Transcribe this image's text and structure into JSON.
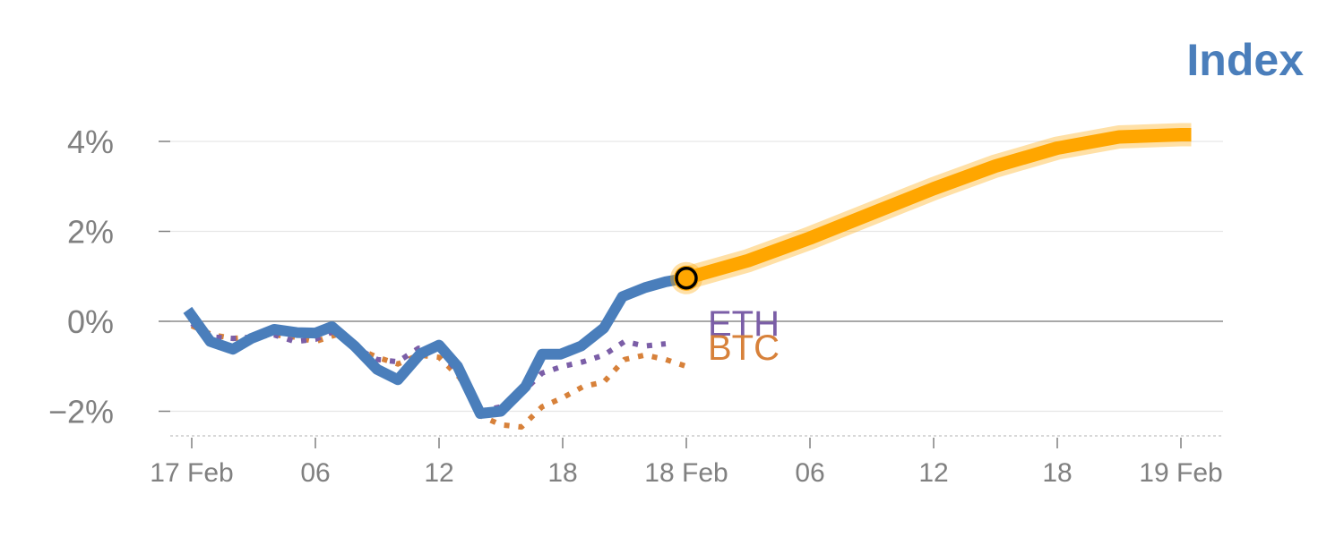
{
  "chart_data": {
    "type": "line",
    "title": "Index",
    "xlabel": "",
    "ylabel": "",
    "ylim": [
      -2.5,
      4.5
    ],
    "grid": true,
    "y_ticks": [
      {
        "value": 4,
        "label": "4%"
      },
      {
        "value": 2,
        "label": "2%"
      },
      {
        "value": 0,
        "label": "0%"
      },
      {
        "value": -2,
        "label": "−2%"
      }
    ],
    "x_ticks": [
      {
        "hour": 0,
        "label": "17 Feb"
      },
      {
        "hour": 6,
        "label": "06"
      },
      {
        "hour": 12,
        "label": "12"
      },
      {
        "hour": 18,
        "label": "18"
      },
      {
        "hour": 24,
        "label": "18 Feb"
      },
      {
        "hour": 30,
        "label": "06"
      },
      {
        "hour": 36,
        "label": "12"
      },
      {
        "hour": 42,
        "label": "18"
      },
      {
        "hour": 48,
        "label": "19 Feb"
      }
    ],
    "colors": {
      "index": "#4a7ebb",
      "eth": "#7b5ea7",
      "btc": "#d7813a",
      "forecast": "#ffa600",
      "marker_stroke": "#000000"
    },
    "series": [
      {
        "key": "index",
        "x": [
          -0.2,
          0.9,
          2,
          2.9,
          4,
          5.1,
          6,
          6.8,
          7.9,
          9,
          10,
          11.1,
          12,
          12.9,
          14,
          15,
          16.2,
          17,
          17.9,
          18.9,
          20,
          20.9,
          22,
          23,
          24
        ],
        "y": [
          0.25,
          -0.45,
          -0.62,
          -0.38,
          -0.18,
          -0.25,
          -0.26,
          -0.12,
          -0.55,
          -1.07,
          -1.3,
          -0.72,
          -0.53,
          -1,
          -2.05,
          -2,
          -1.45,
          -0.73,
          -0.73,
          -0.55,
          -0.15,
          0.55,
          0.75,
          0.88,
          0.96
        ]
      },
      {
        "key": "eth",
        "name": "ETH",
        "x": [
          0,
          1,
          2,
          3,
          4,
          5,
          6,
          7,
          8,
          9,
          10,
          11,
          12,
          13,
          14,
          15,
          16,
          17,
          18,
          19,
          20,
          21,
          22,
          23
        ],
        "y": [
          -0.05,
          -0.35,
          -0.38,
          -0.35,
          -0.3,
          -0.45,
          -0.4,
          -0.2,
          -0.6,
          -0.85,
          -0.9,
          -0.6,
          -0.6,
          -1.2,
          -2,
          -1.9,
          -1.6,
          -1.15,
          -1,
          -0.9,
          -0.75,
          -0.45,
          -0.55,
          -0.5
        ]
      },
      {
        "key": "btc",
        "name": "BTC",
        "x": [
          0,
          1,
          2,
          3,
          4,
          5,
          6,
          7,
          8,
          9,
          10,
          11,
          12,
          13,
          14,
          15,
          16,
          17,
          18,
          19,
          20,
          21,
          22,
          23,
          24
        ],
        "y": [
          -0.1,
          -0.3,
          -0.38,
          -0.35,
          -0.3,
          -0.35,
          -0.45,
          -0.3,
          -0.6,
          -0.8,
          -0.95,
          -0.75,
          -0.8,
          -1.25,
          -2.1,
          -2.3,
          -2.35,
          -1.9,
          -1.7,
          -1.45,
          -1.35,
          -0.85,
          -0.75,
          -0.85,
          -1
        ]
      },
      {
        "key": "forecast",
        "x": [
          24,
          27,
          30,
          33,
          36,
          39,
          42,
          45,
          48,
          48.5
        ],
        "y": [
          0.96,
          1.35,
          1.85,
          2.4,
          2.95,
          3.45,
          3.85,
          4.1,
          4.15,
          4.15
        ]
      }
    ],
    "marker": {
      "x": 24,
      "y": 0.96
    }
  }
}
